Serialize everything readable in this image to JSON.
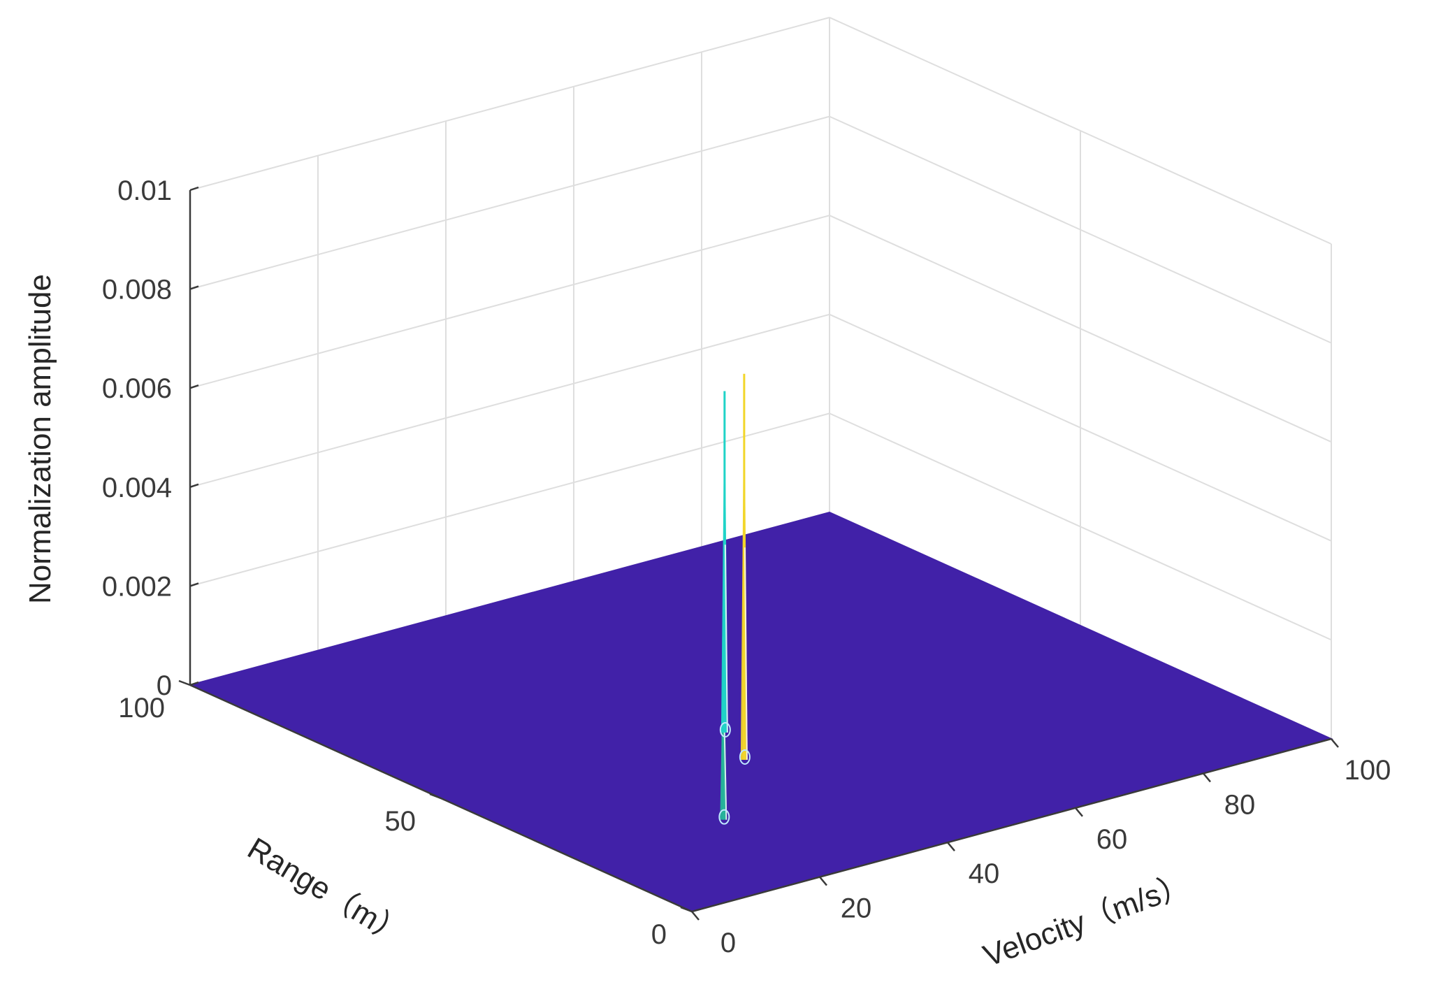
{
  "chart_data": {
    "type": "surface",
    "xlabel": "Velocity（m/s）",
    "ylabel": "Range（m）",
    "zlabel": "Normalization amplitude",
    "xlim": [
      0,
      100
    ],
    "ylim": [
      0,
      100
    ],
    "zlim": [
      0,
      0.01
    ],
    "x_ticks": [
      "0",
      "20",
      "40",
      "60",
      "80",
      "100"
    ],
    "y_ticks": [
      "0",
      "50",
      "100"
    ],
    "z_ticks": [
      "0",
      "0.002",
      "0.004",
      "0.006",
      "0.008",
      "0.01"
    ],
    "grid": true,
    "surface_color": "#4121a8",
    "peaks": [
      {
        "velocity": 23,
        "range": 23,
        "amplitude": 0.0037,
        "color": "#26b59a"
      },
      {
        "velocity": 38,
        "range": 38,
        "amplitude": 0.0078,
        "color": "#f2d62a"
      },
      {
        "velocity": 42,
        "range": 47,
        "amplitude": 0.0069,
        "color": "#1fd3c8"
      }
    ]
  }
}
